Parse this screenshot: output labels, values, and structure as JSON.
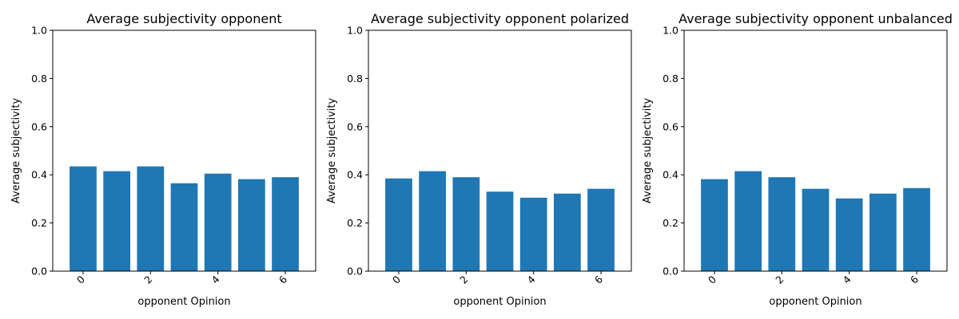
{
  "chart_data": [
    {
      "type": "bar",
      "title": "Average subjectivity opponent",
      "xlabel": "opponent Opinion",
      "ylabel": "Average subjectivity",
      "ylim": [
        0,
        1
      ],
      "yticks": [
        "0.0",
        "0.2",
        "0.4",
        "0.6",
        "0.8",
        "1.0"
      ],
      "xticks": [
        "0",
        "2",
        "4",
        "6"
      ],
      "categories": [
        0,
        1,
        2,
        3,
        4,
        5,
        6
      ],
      "values": [
        0.435,
        0.415,
        0.435,
        0.365,
        0.405,
        0.382,
        0.39
      ],
      "color": "#1f77b4"
    },
    {
      "type": "bar",
      "title": "Average subjectivity opponent polarized",
      "xlabel": "opponent Opinion",
      "ylabel": "Average subjectivity",
      "ylim": [
        0,
        1
      ],
      "yticks": [
        "0.0",
        "0.2",
        "0.4",
        "0.6",
        "0.8",
        "1.0"
      ],
      "xticks": [
        "0",
        "2",
        "4",
        "6"
      ],
      "categories": [
        0,
        1,
        2,
        3,
        4,
        5,
        6
      ],
      "values": [
        0.385,
        0.415,
        0.39,
        0.33,
        0.305,
        0.322,
        0.342
      ],
      "color": "#1f77b4"
    },
    {
      "type": "bar",
      "title": "Average subjectivity opponent unbalanced",
      "xlabel": "opponent Opinion",
      "ylabel": "Average subjectivity",
      "ylim": [
        0,
        1
      ],
      "yticks": [
        "0.0",
        "0.2",
        "0.4",
        "0.6",
        "0.8",
        "1.0"
      ],
      "xticks": [
        "0",
        "2",
        "4",
        "6"
      ],
      "categories": [
        0,
        1,
        2,
        3,
        4,
        5,
        6
      ],
      "values": [
        0.382,
        0.415,
        0.39,
        0.342,
        0.302,
        0.322,
        0.345
      ],
      "color": "#1f77b4"
    }
  ]
}
